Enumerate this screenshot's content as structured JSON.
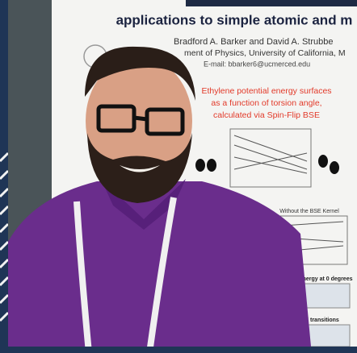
{
  "poster": {
    "title": "applications to simple atomic and m",
    "authors": "Bradford A. Barker and David A. Strubbe",
    "affiliation": "ment of Physics, University of California, M",
    "email": "E-mail: bbarker6@ucmerced.edu",
    "heading_lines": [
      "Ethylene potential energy surfaces",
      "as a function of torsion angle,",
      "calculated via Spin-Flip BSE"
    ],
    "plot_title": "Without the BSE Kernel",
    "table_title_1": "xcitation energy at 0 degrees",
    "table_title_2": "s of SF-BSE transitions"
  }
}
